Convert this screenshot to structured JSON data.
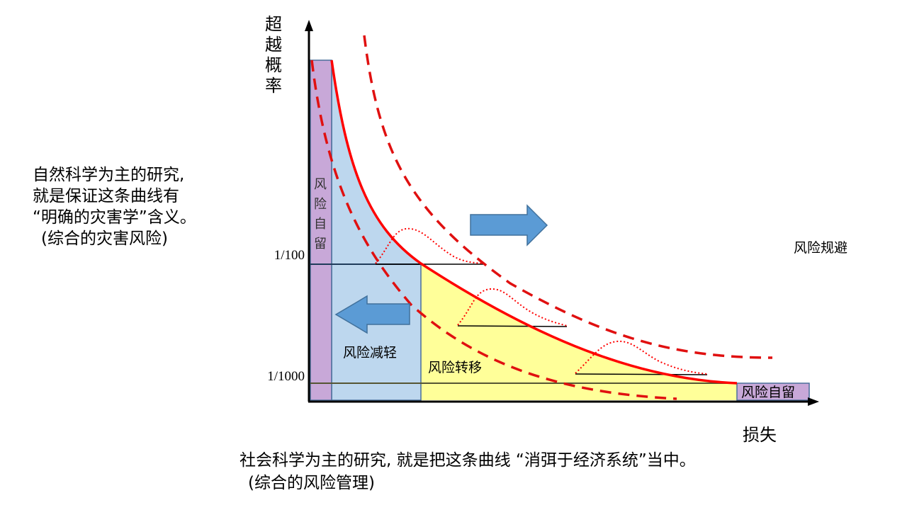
{
  "axes": {
    "y_label": "超越概率",
    "x_label": "损失",
    "y_ticks": [
      "1/100",
      "1/1000"
    ]
  },
  "regions": {
    "retention_left": "风险自留",
    "reduction": "风险减轻",
    "transfer": "风险转移",
    "retention_right": "风险自留",
    "avoidance": "风险规避"
  },
  "notes": {
    "natural_science": [
      "自然科学为主的研究,",
      "就是保证这条曲线有",
      "“明确的灾害学”含义。",
      "(综合的灾害风险)"
    ],
    "social_science": [
      "社会科学为主的研究, 就是把这条曲线 “消弭于经济系统”当中。",
      "(综合的风险管理)"
    ]
  },
  "colors": {
    "curve": "#ff0000",
    "retention_fill": "#c8a8d8",
    "reduction_fill": "#bdd7ee",
    "transfer_fill": "#ffff99",
    "arrow": "#5b9bd5"
  }
}
